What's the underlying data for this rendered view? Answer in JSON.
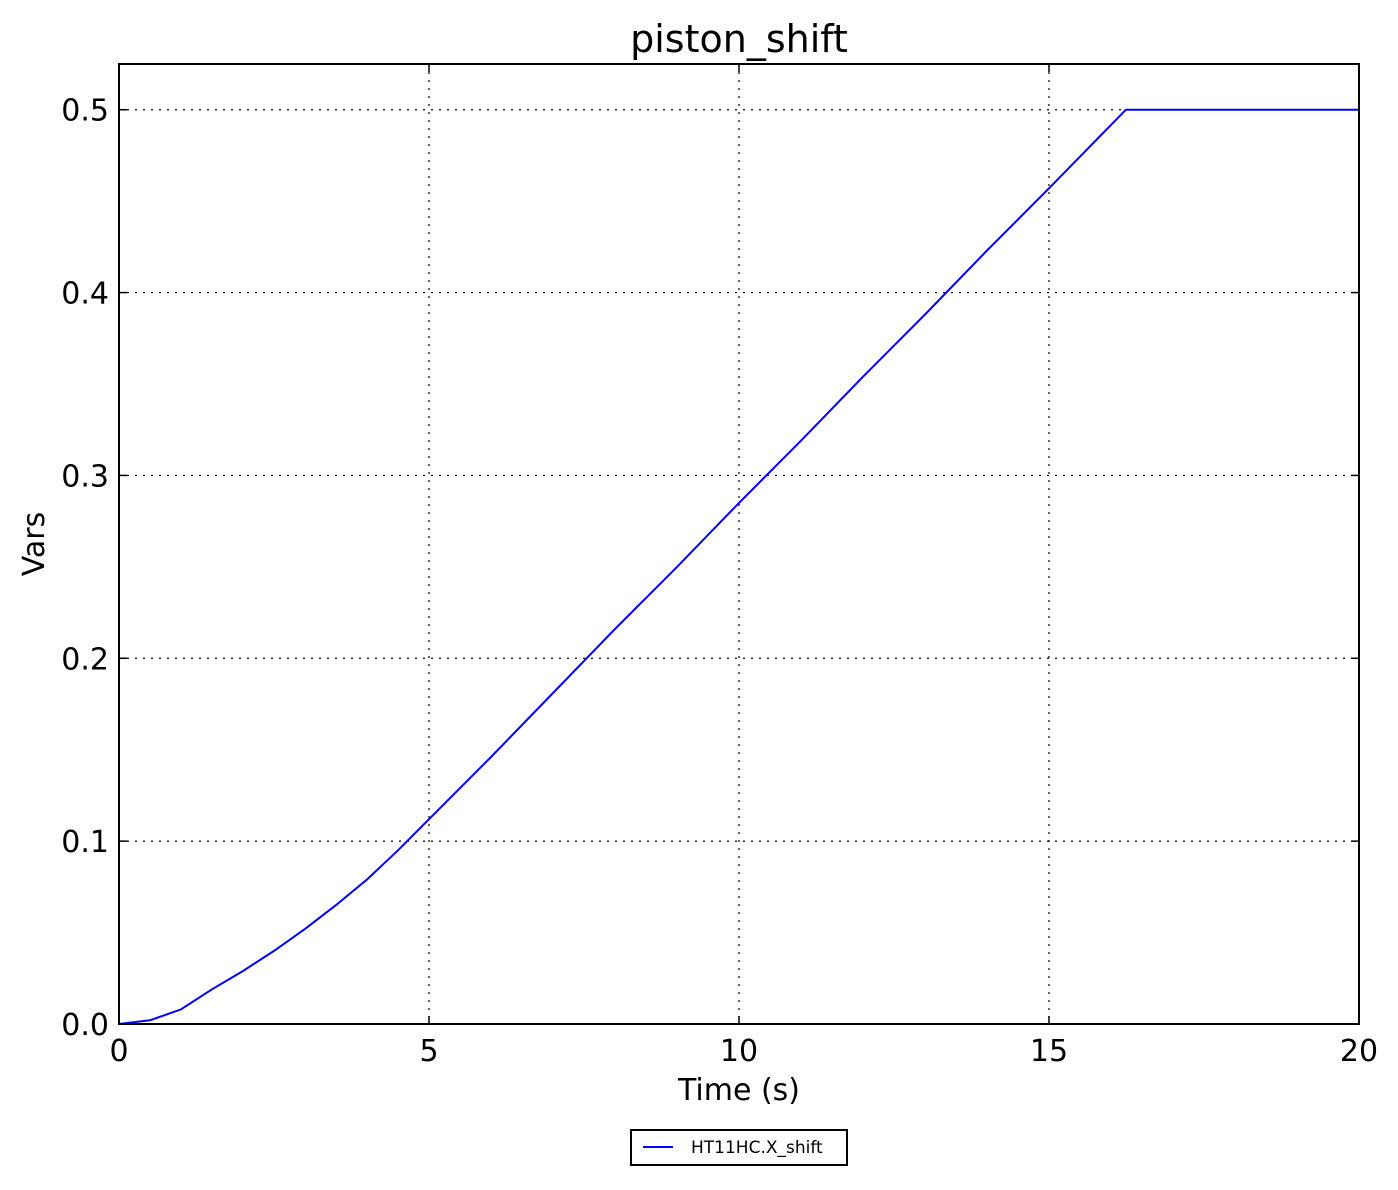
{
  "chart_data": {
    "type": "line",
    "title": "piston_shift",
    "xlabel": "Time (s)",
    "ylabel": "Vars",
    "xlim": [
      0,
      20
    ],
    "ylim": [
      0,
      0.525
    ],
    "xticks": [
      "0",
      "5",
      "10",
      "15",
      "20"
    ],
    "yticks": [
      "0.0",
      "0.1",
      "0.2",
      "0.3",
      "0.4",
      "0.5"
    ],
    "grid": true,
    "legend_placement": "bottom-center-outside",
    "series": [
      {
        "name": "HT11HC.X_shift",
        "color": "#0000ff",
        "x": [
          0,
          0.5,
          1,
          1.5,
          2,
          2.5,
          3,
          3.5,
          4,
          4.5,
          5,
          6,
          7,
          8,
          9,
          10,
          11,
          12,
          13,
          14,
          15,
          16.24,
          20
        ],
        "y": [
          0,
          0.002,
          0.008,
          0.019,
          0.029,
          0.04,
          0.052,
          0.065,
          0.079,
          0.095,
          0.112,
          0.146,
          0.181,
          0.216,
          0.25,
          0.285,
          0.319,
          0.354,
          0.388,
          0.423,
          0.457,
          0.5,
          0.5
        ]
      }
    ]
  }
}
